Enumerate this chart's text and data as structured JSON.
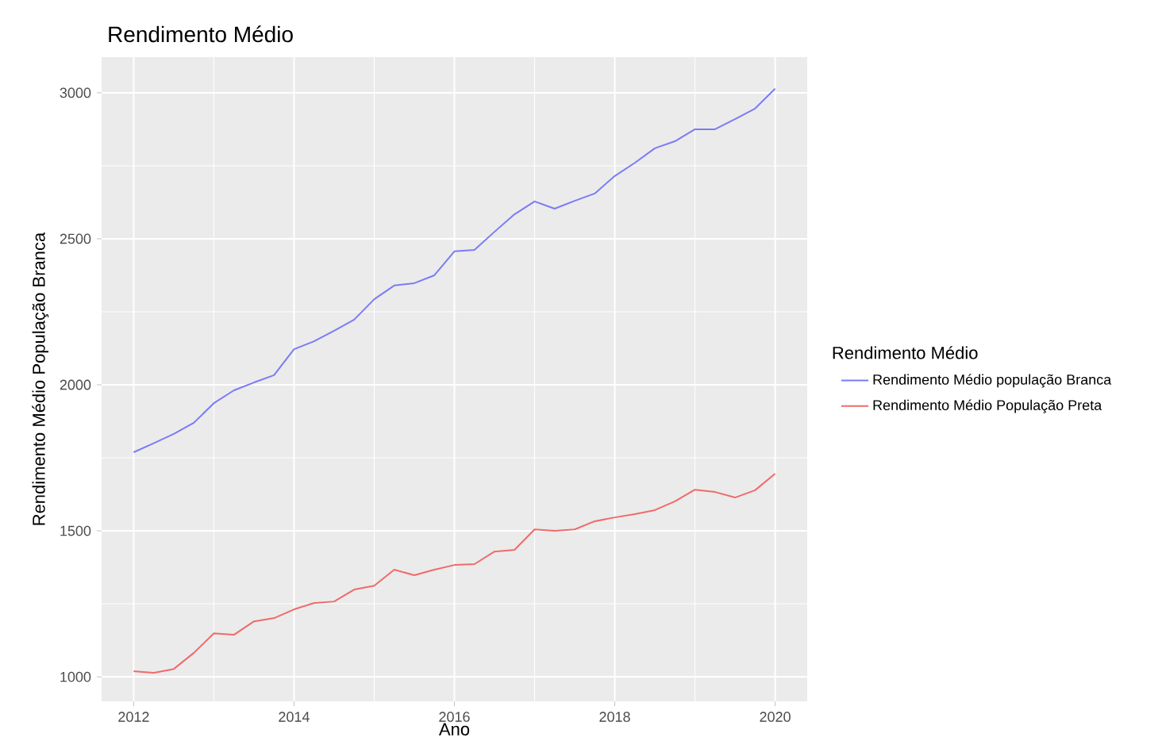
{
  "chart_data": {
    "type": "line",
    "title": "Rendimento Médio",
    "xlabel": "Ano",
    "ylabel": "Rendimento Médio População Branca",
    "legend_title": "Rendimento Médio",
    "x": [
      2012,
      2012.25,
      2012.5,
      2012.75,
      2013,
      2013.25,
      2013.5,
      2013.75,
      2014,
      2014.25,
      2014.5,
      2014.75,
      2015,
      2015.25,
      2015.5,
      2015.75,
      2016,
      2016.25,
      2016.5,
      2016.75,
      2017,
      2017.25,
      2017.5,
      2017.75,
      2018,
      2018.25,
      2018.5,
      2018.75,
      2019,
      2019.25,
      2019.5,
      2019.75,
      2020
    ],
    "series": [
      {
        "name": "Rendimento Médio população Branca",
        "color": "#7b7bf7",
        "values": [
          1769,
          1800,
          1832,
          1870,
          1937,
          1981,
          2008,
          2033,
          2122,
          2149,
          2185,
          2223,
          2293,
          2340,
          2348,
          2375,
          2457,
          2462,
          2524,
          2584,
          2628,
          2603,
          2630,
          2655,
          2715,
          2760,
          2810,
          2834,
          2875,
          2875,
          2910,
          2946,
          3014
        ]
      },
      {
        "name": "Rendimento Médio População Preta",
        "color": "#f06a6a",
        "values": [
          1019,
          1014,
          1027,
          1082,
          1149,
          1144,
          1190,
          1201,
          1231,
          1253,
          1258,
          1299,
          1312,
          1367,
          1348,
          1367,
          1383,
          1386,
          1429,
          1435,
          1505,
          1500,
          1505,
          1533,
          1546,
          1557,
          1571,
          1601,
          1641,
          1633,
          1614,
          1639,
          1696
        ]
      }
    ],
    "xlim": [
      2011.6,
      2020.4
    ],
    "ylim": [
      916,
      3122
    ],
    "xticks": [
      2012,
      2014,
      2016,
      2018,
      2020
    ],
    "yticks": [
      1000,
      1500,
      2000,
      2500,
      3000
    ],
    "grid": true,
    "legend": "right",
    "line_style": "solid"
  }
}
